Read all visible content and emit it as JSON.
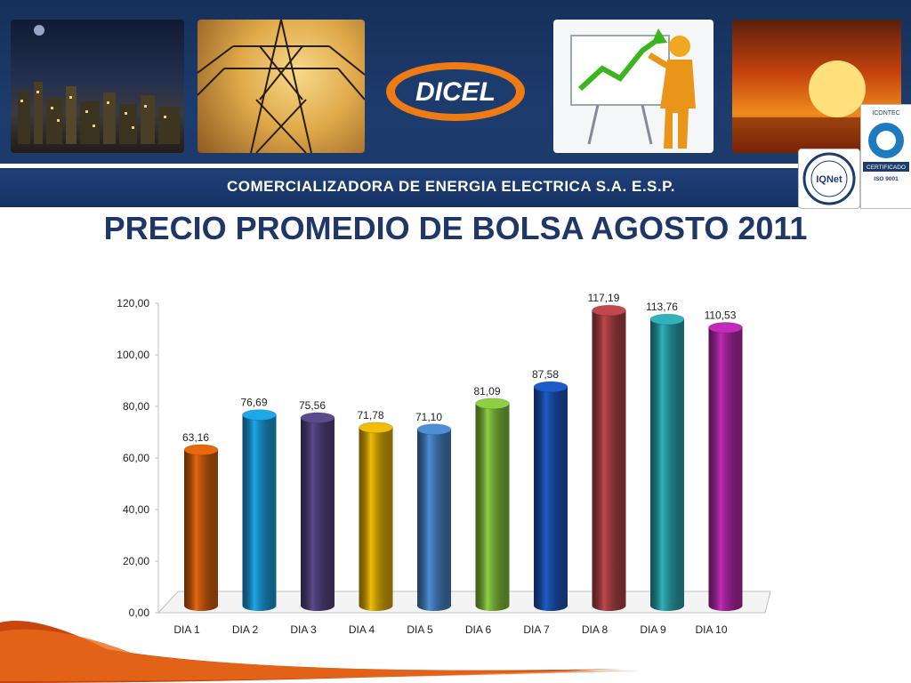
{
  "header": {
    "company": "COMERCIALIZADORA DE ENERGIA ELECTRICA S.A. E.S.P.",
    "logo_text": "DICEL",
    "cert_iqnet": "IQNet",
    "cert_icontec_top": "ICONTEC",
    "cert_icontec_label": "CERTIFICADO",
    "cert_icontec_iso": "ISO 9001"
  },
  "slide": {
    "title": "PRECIO PROMEDIO DE BOLSA AGOSTO 2011"
  },
  "colors": {
    "banner": "#1d3c6e",
    "title": "#1f3768",
    "logo_orange": "#f07b12"
  },
  "chart_data": {
    "type": "bar",
    "title": "",
    "xlabel": "",
    "ylabel": "",
    "categories": [
      "DIA 1",
      "DIA 2",
      "DIA 3",
      "DIA 4",
      "DIA 5",
      "DIA 6",
      "DIA 7",
      "DIA 8",
      "DIA 9",
      "DIA 10"
    ],
    "values": [
      63.16,
      76.69,
      75.56,
      71.78,
      71.1,
      81.09,
      87.58,
      117.19,
      113.76,
      110.53
    ],
    "value_labels": [
      "63,16",
      "76,69",
      "75,56",
      "71,78",
      "71,10",
      "81,09",
      "87,58",
      "117,19",
      "113,76",
      "110,53"
    ],
    "bar_colors": [
      "#e8680e",
      "#1ea8ea",
      "#5b4a8c",
      "#f2bd0a",
      "#4d8fd8",
      "#8ed043",
      "#1e5bc8",
      "#c0484c",
      "#2fb3bd",
      "#c12bb7"
    ],
    "yticks": [
      0,
      20,
      40,
      60,
      80,
      100,
      120
    ],
    "ytick_labels": [
      "0,00",
      "20,00",
      "40,00",
      "60,00",
      "80,00",
      "100,00",
      "120,00"
    ],
    "ylim": [
      0,
      120
    ],
    "grid": false,
    "legend": "none"
  }
}
